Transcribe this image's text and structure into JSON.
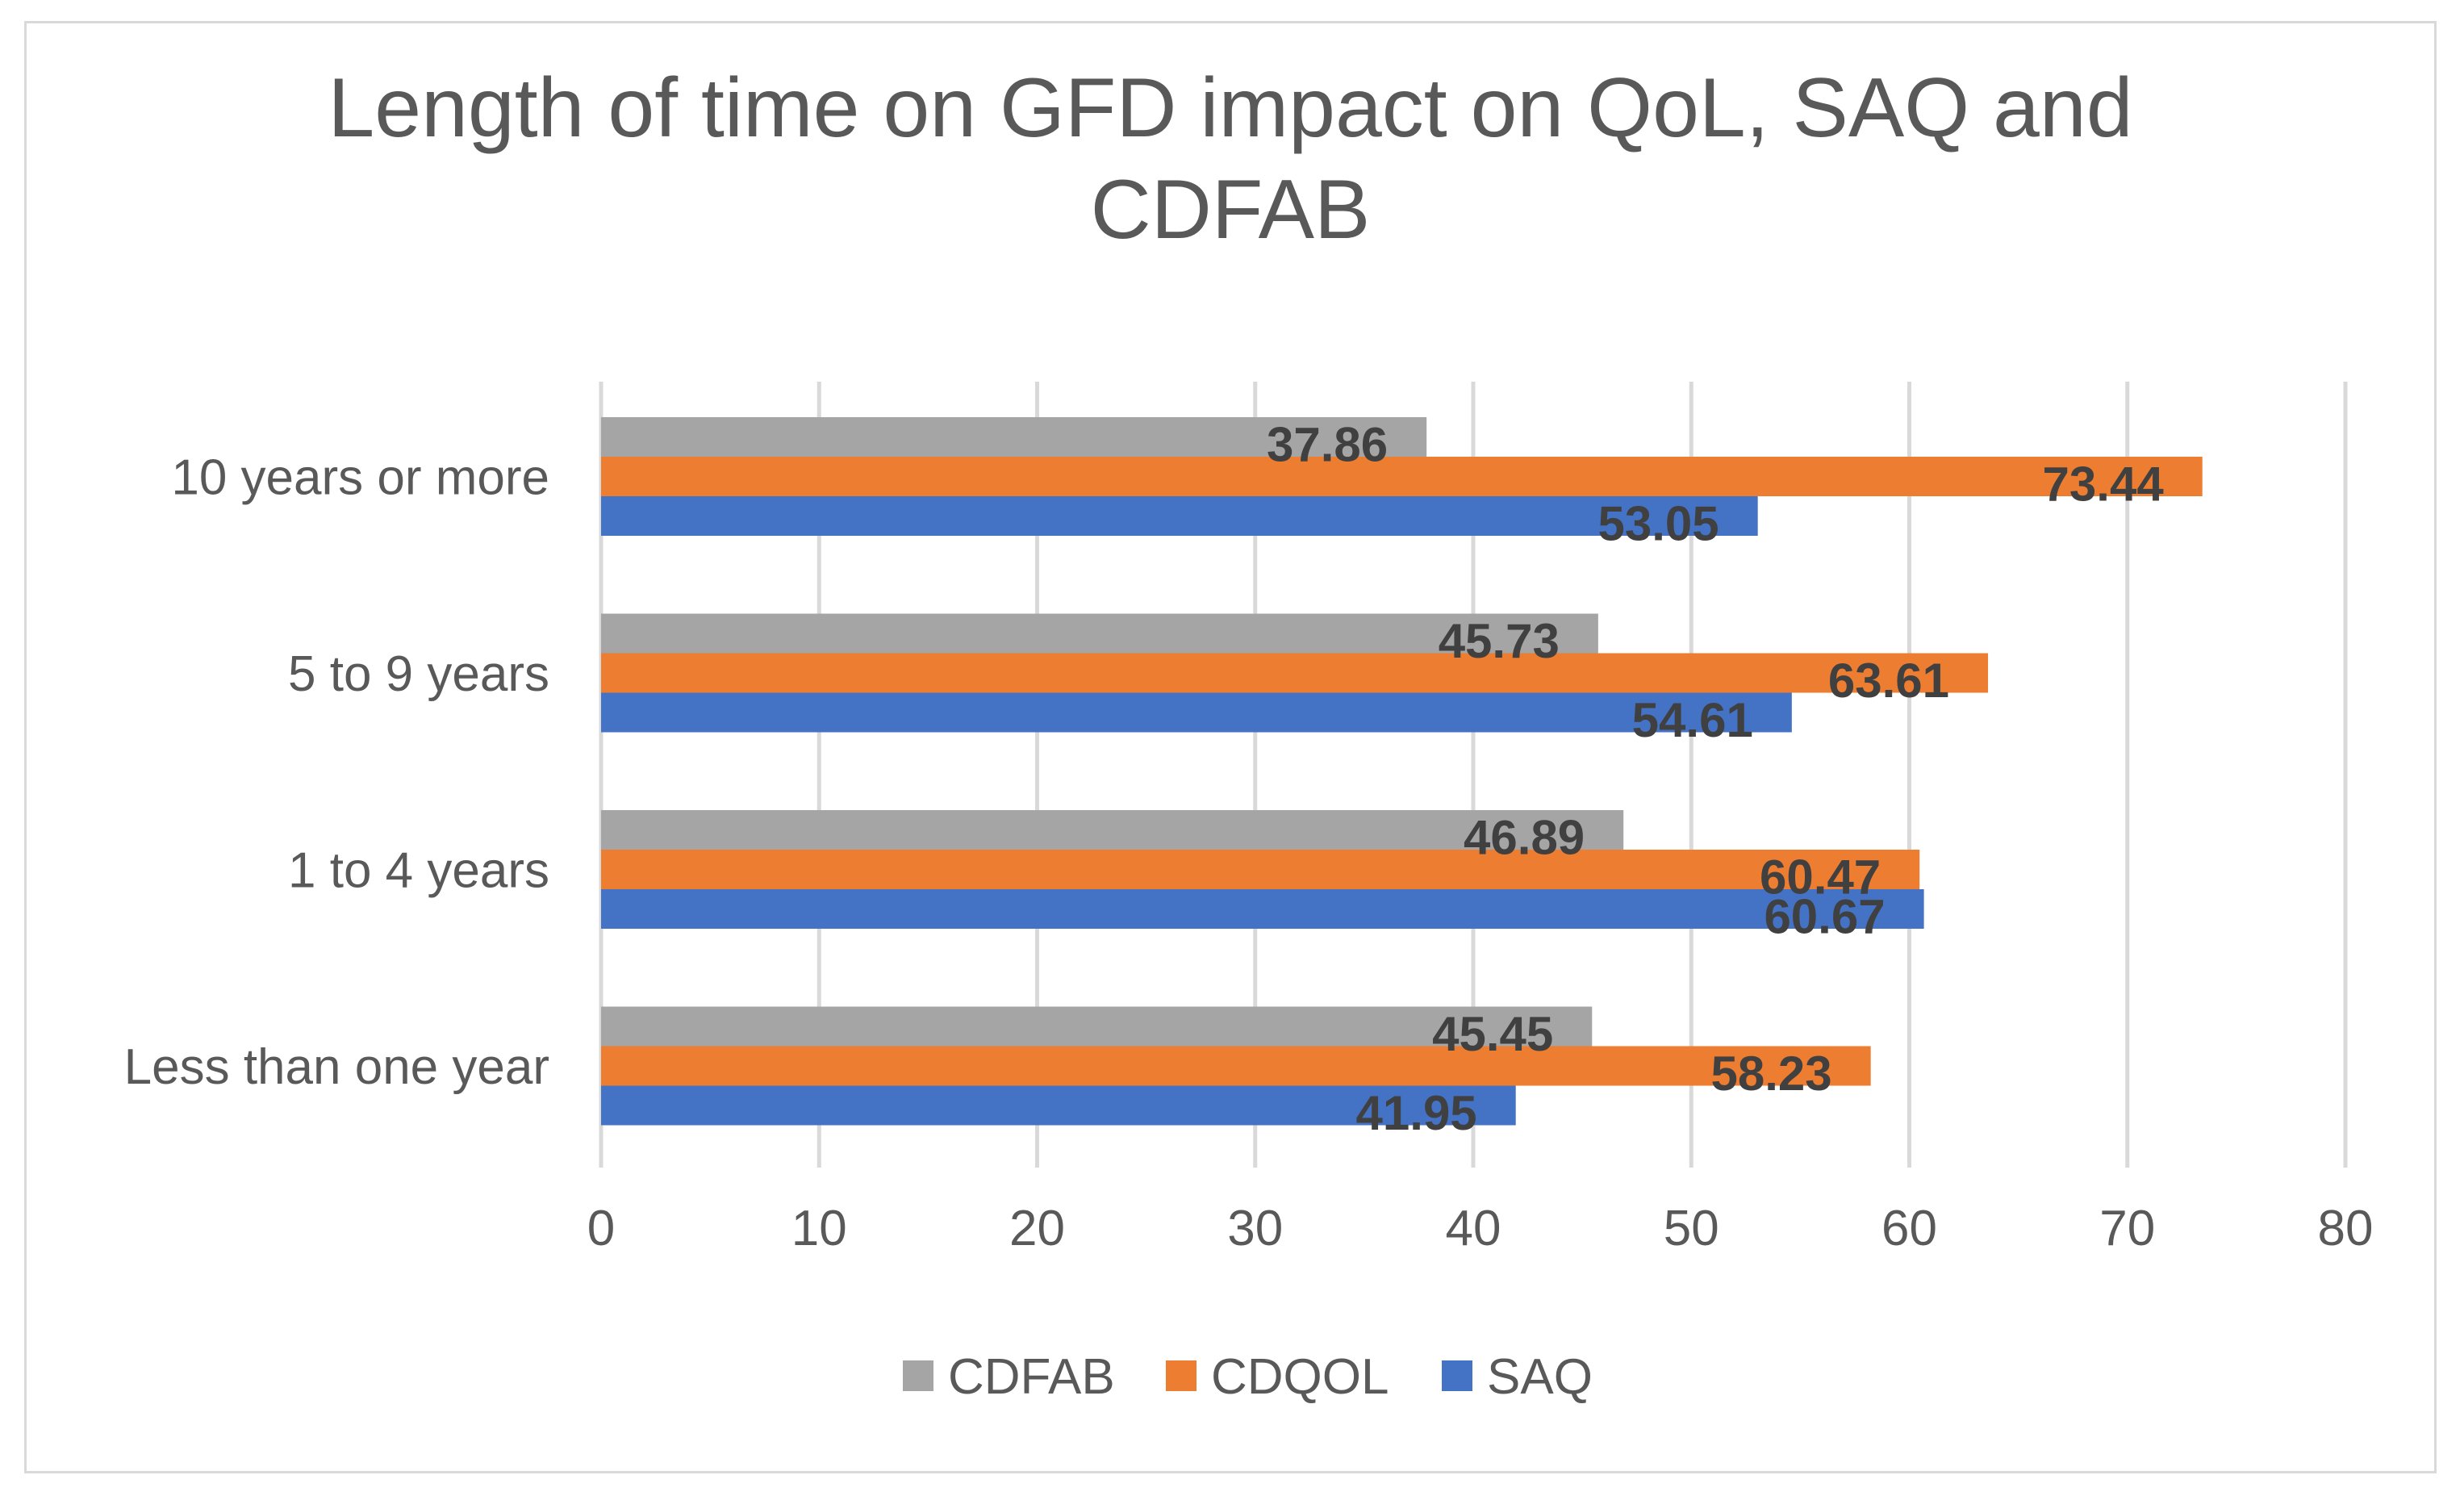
{
  "chart_data": {
    "type": "bar",
    "orientation": "horizontal",
    "title": "Length of time on GFD impact on QoL, SAQ and CDFAB",
    "title_lines": [
      "Length of time on GFD impact on QoL, SAQ and",
      "CDFAB"
    ],
    "categories": [
      "10 years or more",
      "5 to 9 years",
      "1 to 4 years",
      "Less than one year"
    ],
    "series": [
      {
        "name": "CDFAB",
        "color": "#a5a5a5",
        "values": [
          37.86,
          45.73,
          46.89,
          45.45
        ],
        "labels": [
          "37.86",
          "45.73",
          "46.89",
          "45.45"
        ]
      },
      {
        "name": "CDQOL",
        "color": "#ed7d31",
        "values": [
          73.44,
          63.61,
          60.47,
          58.23
        ],
        "labels": [
          "73.44",
          "63.61",
          "60.47",
          "58.23"
        ]
      },
      {
        "name": "SAQ",
        "color": "#4472c4",
        "values": [
          53.05,
          54.61,
          60.67,
          41.95
        ],
        "labels": [
          "53.05",
          "54.61",
          "60.67",
          "41.95"
        ]
      }
    ],
    "xlim": [
      0,
      80
    ],
    "ticks": [
      0,
      10,
      20,
      30,
      40,
      50,
      60,
      70,
      80
    ],
    "tick_labels": [
      "0",
      "10",
      "20",
      "30",
      "40",
      "50",
      "60",
      "70",
      "80"
    ],
    "xlabel": "",
    "ylabel": "",
    "grid": true,
    "legend_position": "bottom",
    "data_labels": "inside-end"
  }
}
